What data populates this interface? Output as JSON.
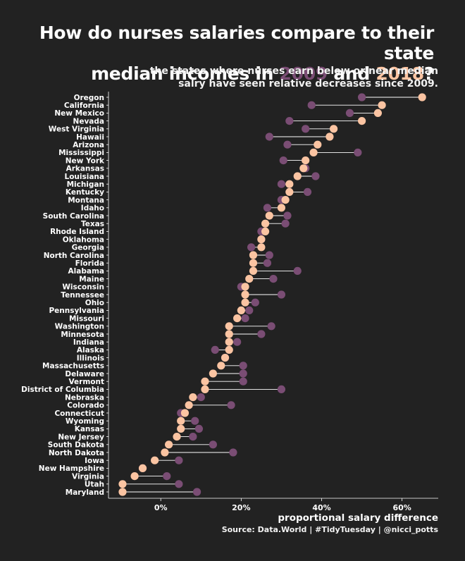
{
  "title": {
    "line1": "How do nurses salaries compare to their state",
    "line2_pre": "median incomes in ",
    "year_a": "2009",
    "mid": " and ",
    "year_b": "2018",
    "end": "?"
  },
  "subtitle": {
    "line1": "the states where nurses earn below or near median",
    "line2": "salry have seen relative decreases since 2009."
  },
  "caption": "Source: Data.World  |  #TidyTuesday |  @nicci_potts",
  "colors": {
    "background": "#222222",
    "color_2009": "#7a4d74",
    "color_2018": "#fbc4a2",
    "segment": "#ffffff"
  },
  "chart_data": {
    "type": "dumbbell",
    "xlabel": "proportional salary difference",
    "ylabel": "",
    "xlim": [
      -0.13,
      0.69
    ],
    "xticks": [
      0,
      0.2,
      0.4,
      0.6
    ],
    "xtick_labels": [
      "0%",
      "20%",
      "40%",
      "60%"
    ],
    "series_names": [
      "2009",
      "2018"
    ],
    "states": [
      {
        "state": "Oregon",
        "v2009": 0.5,
        "v2018": 0.65
      },
      {
        "state": "California",
        "v2009": 0.375,
        "v2018": 0.55
      },
      {
        "state": "New Mexico",
        "v2009": 0.47,
        "v2018": 0.54
      },
      {
        "state": "Nevada",
        "v2009": 0.32,
        "v2018": 0.5
      },
      {
        "state": "West Virginia",
        "v2009": 0.36,
        "v2018": 0.43
      },
      {
        "state": "Hawaii",
        "v2009": 0.27,
        "v2018": 0.42
      },
      {
        "state": "Arizona",
        "v2009": 0.315,
        "v2018": 0.39
      },
      {
        "state": "Mississippi",
        "v2009": 0.49,
        "v2018": 0.38
      },
      {
        "state": "New York",
        "v2009": 0.305,
        "v2018": 0.36
      },
      {
        "state": "Arkansas",
        "v2009": 0.36,
        "v2018": 0.355
      },
      {
        "state": "Louisiana",
        "v2009": 0.385,
        "v2018": 0.34
      },
      {
        "state": "Michigan",
        "v2009": 0.3,
        "v2018": 0.32
      },
      {
        "state": "Kentucky",
        "v2009": 0.365,
        "v2018": 0.32
      },
      {
        "state": "Montana",
        "v2009": 0.3,
        "v2018": 0.31
      },
      {
        "state": "Idaho",
        "v2009": 0.265,
        "v2018": 0.3
      },
      {
        "state": "South Carolina",
        "v2009": 0.315,
        "v2018": 0.27
      },
      {
        "state": "Texas",
        "v2009": 0.31,
        "v2018": 0.26
      },
      {
        "state": "Rhode Island",
        "v2009": 0.25,
        "v2018": 0.26
      },
      {
        "state": "Oklahoma",
        "v2009": 0.25,
        "v2018": 0.25
      },
      {
        "state": "Georgia",
        "v2009": 0.225,
        "v2018": 0.25
      },
      {
        "state": "North Carolina",
        "v2009": 0.27,
        "v2018": 0.23
      },
      {
        "state": "Florida",
        "v2009": 0.265,
        "v2018": 0.23
      },
      {
        "state": "Alabama",
        "v2009": 0.34,
        "v2018": 0.23
      },
      {
        "state": "Maine",
        "v2009": 0.28,
        "v2018": 0.22
      },
      {
        "state": "Wisconsin",
        "v2009": 0.2,
        "v2018": 0.21
      },
      {
        "state": "Tennessee",
        "v2009": 0.3,
        "v2018": 0.21
      },
      {
        "state": "Ohio",
        "v2009": 0.235,
        "v2018": 0.21
      },
      {
        "state": "Pennsylvania",
        "v2009": 0.22,
        "v2018": 0.2
      },
      {
        "state": "Missouri",
        "v2009": 0.21,
        "v2018": 0.19
      },
      {
        "state": "Washington",
        "v2009": 0.275,
        "v2018": 0.17
      },
      {
        "state": "Minnesota",
        "v2009": 0.25,
        "v2018": 0.17
      },
      {
        "state": "Indiana",
        "v2009": 0.19,
        "v2018": 0.17
      },
      {
        "state": "Alaska",
        "v2009": 0.135,
        "v2018": 0.17
      },
      {
        "state": "Illinois",
        "v2009": 0.16,
        "v2018": 0.16
      },
      {
        "state": "Massachusetts",
        "v2009": 0.205,
        "v2018": 0.15
      },
      {
        "state": "Delaware",
        "v2009": 0.205,
        "v2018": 0.13
      },
      {
        "state": "Vermont",
        "v2009": 0.205,
        "v2018": 0.11
      },
      {
        "state": "District of Columbia",
        "v2009": 0.3,
        "v2018": 0.11
      },
      {
        "state": "Nebraska",
        "v2009": 0.1,
        "v2018": 0.08
      },
      {
        "state": "Colorado",
        "v2009": 0.175,
        "v2018": 0.07
      },
      {
        "state": "Connecticut",
        "v2009": 0.05,
        "v2018": 0.06
      },
      {
        "state": "Wyoming",
        "v2009": 0.085,
        "v2018": 0.05
      },
      {
        "state": "Kansas",
        "v2009": 0.095,
        "v2018": 0.05
      },
      {
        "state": "New Jersey",
        "v2009": 0.08,
        "v2018": 0.04
      },
      {
        "state": "South Dakota",
        "v2009": 0.13,
        "v2018": 0.02
      },
      {
        "state": "North Dakota",
        "v2009": 0.18,
        "v2018": 0.01
      },
      {
        "state": "Iowa",
        "v2009": 0.045,
        "v2018": -0.015
      },
      {
        "state": "New Hampshire",
        "v2009": -0.045,
        "v2018": -0.045
      },
      {
        "state": "Virginia",
        "v2009": 0.015,
        "v2018": -0.065
      },
      {
        "state": "Utah",
        "v2009": 0.045,
        "v2018": -0.095
      },
      {
        "state": "Maryland",
        "v2009": 0.09,
        "v2018": -0.095
      }
    ]
  }
}
